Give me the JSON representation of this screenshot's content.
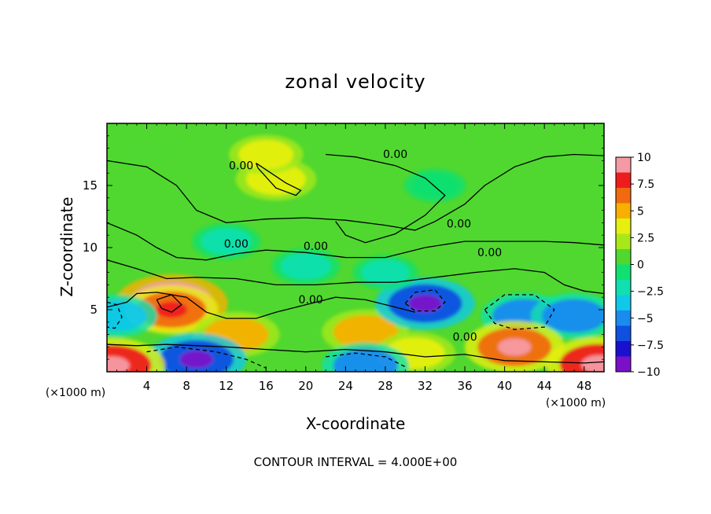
{
  "chart_data": {
    "type": "heatmap",
    "title": "zonal velocity",
    "xlabel": "X-coordinate",
    "ylabel": "Z-coordinate",
    "x_unit": "(×1000 m)",
    "y_unit": "(×1000 m)",
    "xlim": [
      0,
      50
    ],
    "ylim": [
      0,
      20
    ],
    "x_ticks": [
      4,
      8,
      12,
      16,
      20,
      24,
      28,
      32,
      36,
      40,
      44,
      48
    ],
    "y_ticks": [
      5,
      10,
      15
    ],
    "colorbar": {
      "ticks": [
        "10",
        "7.5",
        "5",
        "2.5",
        "0",
        "−2.5",
        "−5",
        "−7.5",
        "−10"
      ],
      "range": [
        -10,
        10
      ],
      "colors": [
        "#f59aa4",
        "#ee1c1c",
        "#f06a10",
        "#f7b000",
        "#e6ef10",
        "#a8e81a",
        "#50d830",
        "#10e070",
        "#10e0b0",
        "#10c8e8",
        "#1a8cf0",
        "#1050e0",
        "#1a10d0",
        "#7a10c8"
      ]
    },
    "contour_levels": [
      -4,
      0,
      4
    ],
    "contour_labels": [
      "0.00",
      "0.00",
      "0.00",
      "0.00",
      "0.00",
      "0.00",
      "0.00",
      "0.00"
    ],
    "contour_interval_text": "CONTOUR INTERVAL = 4.000E+00",
    "features": [
      {
        "x": 6.5,
        "z": 5.5,
        "value": 9
      },
      {
        "x": 6.5,
        "z": 5.0,
        "value": 6
      },
      {
        "x": 13,
        "z": 3.0,
        "value": 5
      },
      {
        "x": 26,
        "z": 3.2,
        "value": 5
      },
      {
        "x": 31,
        "z": 1.5,
        "value": 4
      },
      {
        "x": 32,
        "z": 5.5,
        "value": -7
      },
      {
        "x": 42,
        "z": 4.5,
        "value": -5
      },
      {
        "x": 47,
        "z": 4.5,
        "value": -5
      },
      {
        "x": 9,
        "z": 1.0,
        "value": -7
      },
      {
        "x": 26,
        "z": 0.5,
        "value": -5
      },
      {
        "x": 1,
        "z": 4.5,
        "value": -4
      },
      {
        "x": 41,
        "z": 2.0,
        "value": 7
      },
      {
        "x": 49.5,
        "z": 0.6,
        "value": 8
      },
      {
        "x": 0.5,
        "z": 0.5,
        "value": 8
      },
      {
        "x": 17,
        "z": 15.5,
        "value": 4
      },
      {
        "x": 16,
        "z": 17.5,
        "value": 3
      },
      {
        "x": 12,
        "z": 10.5,
        "value": -2
      },
      {
        "x": 20,
        "z": 8.5,
        "value": -2
      },
      {
        "x": 28,
        "z": 8.0,
        "value": -1.5
      },
      {
        "x": 33,
        "z": 15,
        "value": -1
      },
      {
        "x": 3,
        "z": 18,
        "value": 1
      }
    ]
  }
}
